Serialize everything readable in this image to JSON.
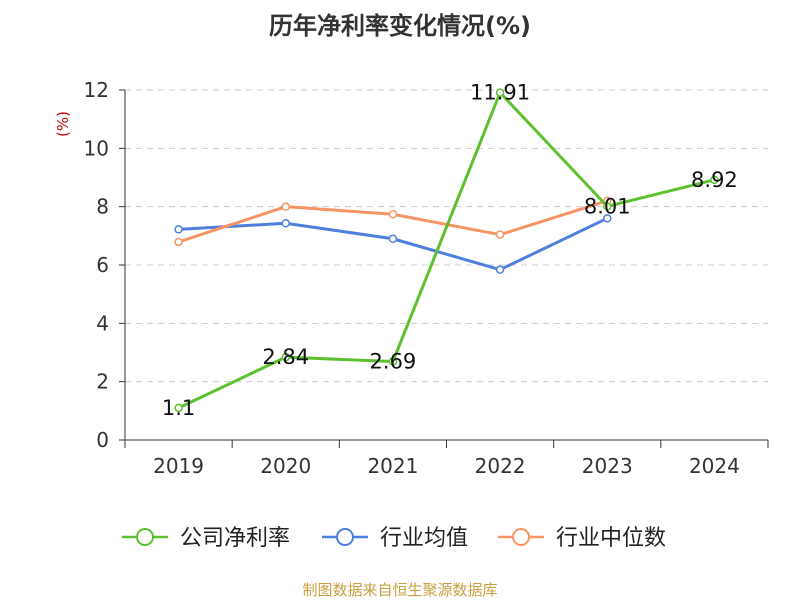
{
  "source_note": "制图数据来自恒生聚源数据库",
  "colors": {
    "title": "#333333",
    "axis": "#333333",
    "grid": "#cccccc",
    "unit_label": "#cc0000",
    "source_note": "#c8a042"
  },
  "chart_data": {
    "type": "line",
    "title": "历年净利率变化情况(%)",
    "ylabel": "(%)",
    "xlabel": "",
    "categories": [
      "2019",
      "2020",
      "2021",
      "2022",
      "2023",
      "2024"
    ],
    "ylim": [
      0,
      12
    ],
    "yticks": [
      0,
      2,
      4,
      6,
      8,
      10,
      12
    ],
    "grid": true,
    "legend_position": "bottom",
    "series": [
      {
        "name": "公司净利率",
        "color": "#5cc12d",
        "values": [
          1.1,
          2.84,
          2.69,
          11.91,
          8.01,
          8.92
        ],
        "data_labels": [
          "1.1",
          "2.84",
          "2.69",
          "11.91",
          "8.01",
          "8.92"
        ]
      },
      {
        "name": "行业均值",
        "color": "#4f7fdc",
        "values": [
          7.22,
          7.43,
          6.9,
          5.84,
          7.6,
          null
        ]
      },
      {
        "name": "行业中位数",
        "color": "#f79466",
        "values": [
          6.79,
          8.0,
          7.74,
          7.04,
          8.2,
          null
        ]
      }
    ]
  }
}
